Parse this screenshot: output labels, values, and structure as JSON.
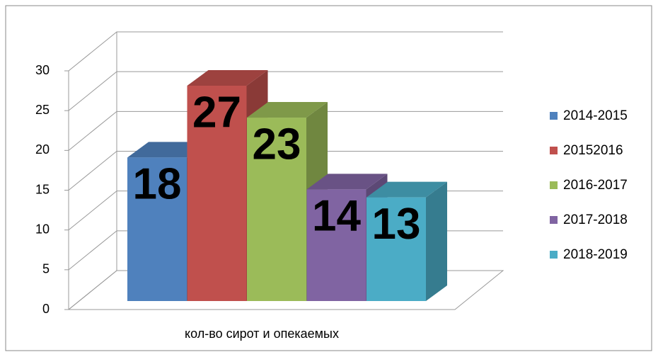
{
  "chart_data": {
    "type": "bar3d",
    "categories": [
      "кол-во сирот и опекаемых"
    ],
    "series": [
      {
        "name": "2014-2015",
        "color": "#4f81bd",
        "values": [
          18
        ]
      },
      {
        "name": "20152016",
        "color": "#c0504d",
        "values": [
          27
        ]
      },
      {
        "name": "2016-2017",
        "color": "#9bbb59",
        "values": [
          23
        ]
      },
      {
        "name": "2017-2018",
        "color": "#8064a2",
        "values": [
          14
        ]
      },
      {
        "name": "2018-2019",
        "color": "#4bacc6",
        "values": [
          13
        ]
      }
    ],
    "ylim": [
      0,
      30
    ],
    "yticks": [
      0,
      5,
      10,
      15,
      20,
      25,
      30
    ],
    "grid": true,
    "legend": "right"
  }
}
